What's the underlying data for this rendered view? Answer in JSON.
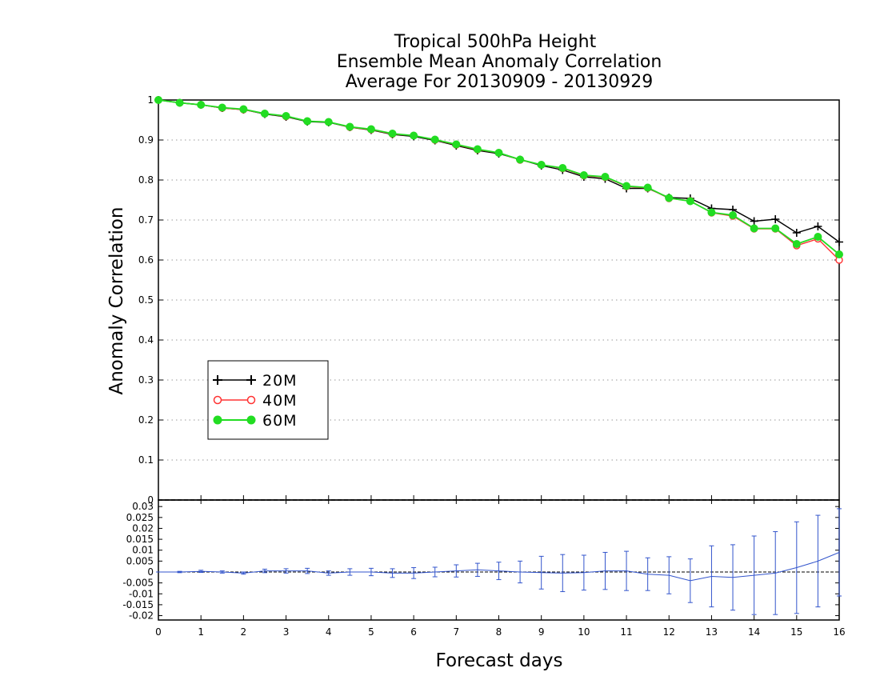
{
  "chart_data": [
    {
      "type": "line",
      "title_lines": [
        "Tropical 500hPa Height",
        "Ensemble Mean Anomaly Correlation",
        "Average For 20130909 - 20130929"
      ],
      "ylabel": "Anomaly Correlation",
      "ylim": [
        0,
        1
      ],
      "yticks": [
        "0",
        "0.1",
        "0.2",
        "0.3",
        "0.4",
        "0.5",
        "0.6",
        "0.7",
        "0.8",
        "0.9",
        "1"
      ],
      "xlim": [
        0,
        16
      ],
      "grid": "horizontal dotted",
      "legend_position": "lower-left",
      "x": [
        0,
        0.5,
        1,
        1.5,
        2,
        2.5,
        3,
        3.5,
        4,
        4.5,
        5,
        5.5,
        6,
        6.5,
        7,
        7.5,
        8,
        8.5,
        9,
        9.5,
        10,
        10.5,
        11,
        11.5,
        12,
        12.5,
        13,
        13.5,
        14,
        14.5,
        15,
        15.5,
        16
      ],
      "series": [
        {
          "name": "20M",
          "color": "#000000",
          "marker": "plus",
          "values": [
            1.0,
            0.993,
            0.988,
            0.98,
            0.976,
            0.965,
            0.958,
            0.946,
            0.944,
            0.932,
            0.925,
            0.914,
            0.909,
            0.899,
            0.886,
            0.874,
            0.866,
            0.851,
            0.836,
            0.825,
            0.808,
            0.803,
            0.779,
            0.779,
            0.756,
            0.754,
            0.729,
            0.726,
            0.697,
            0.702,
            0.668,
            0.684,
            0.645
          ]
        },
        {
          "name": "40M",
          "color": "#ff3333",
          "marker": "open-circle",
          "values": [
            1.0,
            0.993,
            0.988,
            0.98,
            0.976,
            0.966,
            0.959,
            0.947,
            0.945,
            0.932,
            0.926,
            0.915,
            0.911,
            0.9,
            0.888,
            0.876,
            0.868,
            0.85,
            0.838,
            0.829,
            0.811,
            0.807,
            0.784,
            0.78,
            0.754,
            0.748,
            0.718,
            0.71,
            0.678,
            0.678,
            0.636,
            0.653,
            0.6
          ]
        },
        {
          "name": "60M",
          "color": "#22dd22",
          "marker": "filled-circle",
          "values": [
            1.0,
            0.993,
            0.988,
            0.981,
            0.977,
            0.966,
            0.96,
            0.947,
            0.945,
            0.933,
            0.927,
            0.916,
            0.911,
            0.901,
            0.889,
            0.877,
            0.868,
            0.851,
            0.838,
            0.83,
            0.812,
            0.808,
            0.785,
            0.781,
            0.755,
            0.747,
            0.719,
            0.712,
            0.679,
            0.679,
            0.64,
            0.658,
            0.614
          ]
        }
      ]
    },
    {
      "type": "line",
      "subtype": "difference with error bars",
      "xlabel": "Forecast days",
      "xticks": [
        "0",
        "1",
        "2",
        "3",
        "4",
        "5",
        "6",
        "7",
        "8",
        "9",
        "10",
        "11",
        "12",
        "13",
        "14",
        "15",
        "16"
      ],
      "ylim": [
        -0.022,
        0.033
      ],
      "yticks": [
        "0.03",
        "0.025",
        "0.02",
        "0.015",
        "0.01",
        "0.005",
        "0",
        "-0.005",
        "-0.01",
        "-0.015",
        "-0.02"
      ],
      "color": "#3355cc",
      "x": [
        0,
        0.5,
        1,
        1.5,
        2,
        2.5,
        3,
        3.5,
        4,
        4.5,
        5,
        5.5,
        6,
        6.5,
        7,
        7.5,
        8,
        8.5,
        9,
        9.5,
        10,
        10.5,
        11,
        11.5,
        12,
        12.5,
        13,
        13.5,
        14,
        14.5,
        15,
        15.5,
        16
      ],
      "values": [
        0,
        0,
        0.0003,
        0,
        -0.0005,
        0.0005,
        0.0005,
        0.0005,
        -0.0005,
        0,
        0,
        -0.0005,
        -0.0005,
        0,
        0.0005,
        0.001,
        0.0005,
        0,
        -0.0003,
        -0.0005,
        -0.0003,
        0.0005,
        0.0005,
        -0.001,
        -0.0015,
        -0.004,
        -0.002,
        -0.0025,
        -0.0015,
        -0.0005,
        0.002,
        0.005,
        0.009
      ],
      "errors": [
        0,
        0.0003,
        0.0005,
        0.0005,
        0.0005,
        0.0008,
        0.001,
        0.0012,
        0.001,
        0.0015,
        0.0017,
        0.002,
        0.0025,
        0.0022,
        0.0028,
        0.003,
        0.004,
        0.005,
        0.0075,
        0.0085,
        0.008,
        0.0085,
        0.009,
        0.0075,
        0.0085,
        0.01,
        0.014,
        0.015,
        0.018,
        0.019,
        0.021,
        0.021,
        0.02
      ]
    }
  ]
}
